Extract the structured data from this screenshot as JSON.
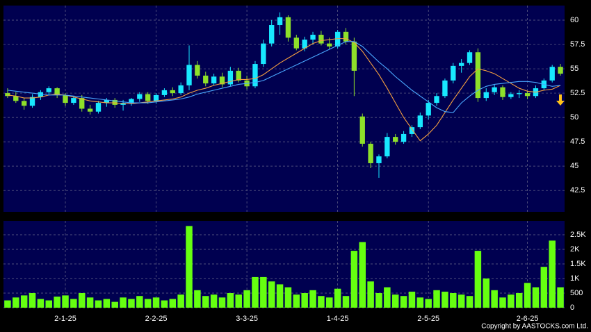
{
  "chart_data": {
    "type": "candlestick",
    "categories": [
      null,
      null,
      null,
      null,
      null,
      null,
      null,
      "2-1-25",
      null,
      null,
      null,
      null,
      null,
      null,
      null,
      null,
      null,
      null,
      "2-2-25",
      null,
      null,
      null,
      null,
      null,
      null,
      null,
      null,
      null,
      null,
      "3-3-25",
      null,
      null,
      null,
      null,
      null,
      null,
      null,
      null,
      null,
      null,
      "1-4-25",
      null,
      null,
      null,
      null,
      null,
      null,
      null,
      null,
      null,
      null,
      "2-5-25",
      null,
      null,
      null,
      null,
      null,
      null,
      null,
      null,
      null,
      null,
      null,
      "2-6-25",
      null,
      null,
      null,
      null
    ],
    "open": [
      52.5,
      52.2,
      51.7,
      51.2,
      52.1,
      52.6,
      53,
      52.3,
      51.5,
      52,
      50.9,
      50.6,
      51.5,
      51.8,
      51.3,
      51.5,
      51.9,
      52.4,
      51.7,
      52.3,
      52.8,
      52.5,
      53.3,
      55.4,
      54.3,
      53.5,
      54.2,
      53.4,
      54.8,
      53.8,
      53.2,
      55.5,
      57.6,
      59.5,
      60.3,
      58.2,
      57.1,
      58,
      58.5,
      57.6,
      57.3,
      58.8,
      57.8,
      50.1,
      47.3,
      45.3,
      46,
      48,
      47.5,
      48.3,
      49,
      50.2,
      51.5,
      52.2,
      53.8,
      55.3,
      55.6,
      56.7,
      52,
      52.6,
      53.1,
      52.1,
      52.4,
      52.5,
      52.2,
      53,
      53.8,
      55.2
    ],
    "high": [
      53,
      52.6,
      52,
      52.4,
      52.8,
      53.2,
      53.1,
      52.5,
      52.2,
      52.3,
      51.3,
      51.7,
      52,
      52,
      51.8,
      52,
      52.6,
      52.6,
      52.5,
      53,
      53.1,
      53.6,
      57.4,
      55.8,
      54.7,
      54.5,
      54.6,
      55.2,
      55.1,
      54.3,
      55.8,
      58,
      60,
      60.8,
      60.5,
      58.5,
      58.3,
      58.8,
      58.9,
      58.2,
      59,
      59.2,
      58.2,
      50.4,
      47.5,
      46.2,
      48.4,
      48.3,
      48.6,
      49.2,
      50.5,
      51.8,
      52.5,
      54,
      55.6,
      56,
      56.9,
      57.1,
      53,
      53.4,
      53.3,
      52.6,
      52.8,
      52.7,
      53.3,
      54,
      55.4,
      55.5
    ],
    "low": [
      52,
      51.5,
      50.8,
      51,
      51.8,
      52.3,
      52,
      51.2,
      51.3,
      50.6,
      50.3,
      50.4,
      51.1,
      51,
      50.7,
      51.2,
      51.6,
      51.4,
      51.4,
      52.1,
      52.2,
      52.3,
      52.8,
      54,
      53.2,
      53.3,
      53.1,
      53.2,
      53.6,
      52.9,
      53,
      55.2,
      57.3,
      58.5,
      57.8,
      56.9,
      56.8,
      57.5,
      57.4,
      57,
      57.1,
      57.5,
      52.2,
      47,
      44.8,
      43.8,
      45.8,
      47.2,
      47.3,
      48,
      48.8,
      49.8,
      51.2,
      52,
      53.5,
      54.6,
      55.4,
      51.6,
      51.7,
      52.3,
      51.8,
      51.9,
      52,
      51.9,
      52,
      52.8,
      53.6,
      54.3
    ],
    "close": [
      52.2,
      51.7,
      51.2,
      52.1,
      52.6,
      53,
      52.3,
      51.5,
      52,
      50.9,
      50.6,
      51.5,
      51.8,
      51.3,
      51.5,
      51.9,
      52.4,
      51.7,
      52.3,
      52.8,
      52.5,
      53.3,
      55.4,
      54.3,
      53.5,
      54.2,
      53.4,
      54.8,
      53.8,
      53.2,
      55.5,
      57.6,
      59.5,
      60.3,
      58.2,
      57.1,
      58,
      58.5,
      57.6,
      57.3,
      58.8,
      57.8,
      54.8,
      47.3,
      45.3,
      46,
      48,
      47.5,
      48.3,
      49,
      50.2,
      51.5,
      52.2,
      53.8,
      55.3,
      55.6,
      56.7,
      52,
      52.6,
      53.1,
      52.1,
      52.4,
      52.5,
      52.2,
      53,
      53.8,
      55.2,
      54.5
    ],
    "up_color": "#18e8ff",
    "down_color": "#8ee02a",
    "ma_series": [
      {
        "color": "#f5a040",
        "values": [
          52.3,
          52.2,
          52,
          52,
          52.1,
          52.3,
          52.4,
          52.3,
          52.1,
          51.9,
          51.7,
          51.6,
          51.5,
          51.5,
          51.4,
          51.4,
          51.5,
          51.6,
          51.7,
          51.8,
          51.9,
          52.1,
          52.5,
          52.8,
          53,
          53.3,
          53.5,
          53.7,
          53.9,
          53.9,
          54,
          54.4,
          55,
          55.6,
          56.1,
          56.6,
          57.1,
          57.6,
          57.9,
          58,
          58.1,
          58.1,
          57.7,
          56.8,
          55.6,
          54.4,
          53,
          51.5,
          50,
          48.8,
          47.6,
          48.3,
          49.2,
          50.5,
          51.8,
          53,
          54.2,
          55,
          54.8,
          54.5,
          54,
          53.5,
          53,
          52.7,
          52.6,
          52.8,
          52.9,
          53.3
        ]
      },
      {
        "color": "#4aa8ff",
        "values": [
          52.8,
          52.7,
          52.6,
          52.5,
          52.4,
          52.3,
          52.3,
          52.3,
          52.2,
          52.1,
          52,
          51.9,
          51.8,
          51.7,
          51.6,
          51.5,
          51.5,
          51.5,
          51.6,
          51.7,
          51.8,
          51.9,
          52.1,
          52.4,
          52.6,
          52.8,
          53,
          53.2,
          53.4,
          53.5,
          53.6,
          53.8,
          54.2,
          54.6,
          55,
          55.4,
          55.8,
          56.2,
          56.6,
          57,
          57.4,
          57.8,
          57.8,
          57.3,
          56.5,
          55.7,
          55,
          54.2,
          53.5,
          52.8,
          52.2,
          51.6,
          51,
          50.6,
          50.5,
          51.5,
          52.2,
          52.8,
          53.2,
          53.4,
          53.5,
          53.6,
          53.7,
          53.7,
          53.6,
          53.4,
          53.2,
          53.3
        ]
      }
    ],
    "ylim": [
      40.3,
      61.5
    ],
    "yticks": [
      42.5,
      45,
      47.5,
      50,
      52.5,
      55,
      57.5,
      60
    ],
    "volume": [
      250,
      350,
      420,
      500,
      300,
      250,
      380,
      420,
      300,
      500,
      350,
      250,
      300,
      200,
      350,
      300,
      400,
      300,
      350,
      250,
      300,
      450,
      2800,
      600,
      400,
      450,
      350,
      500,
      450,
      600,
      1050,
      1050,
      900,
      800,
      700,
      450,
      500,
      600,
      400,
      350,
      650,
      400,
      1950,
      2250,
      900,
      500,
      700,
      450,
      400,
      550,
      350,
      300,
      600,
      550,
      500,
      450,
      400,
      1950,
      1000,
      600,
      350,
      450,
      500,
      850,
      700,
      1400,
      2300,
      700
    ],
    "volume_color": "#66ff10",
    "y2lim": [
      0,
      2976
    ],
    "y2ticks": [
      0,
      500,
      {
        "value": 1000,
        "label": "1K"
      },
      {
        "value": 1500,
        "label": "1.5K"
      },
      {
        "value": 2000,
        "label": "2K"
      },
      {
        "value": 2500,
        "label": "2.5K"
      }
    ],
    "grid": true,
    "copyright": "Copyright by AASTOCKS.com Ltd."
  }
}
